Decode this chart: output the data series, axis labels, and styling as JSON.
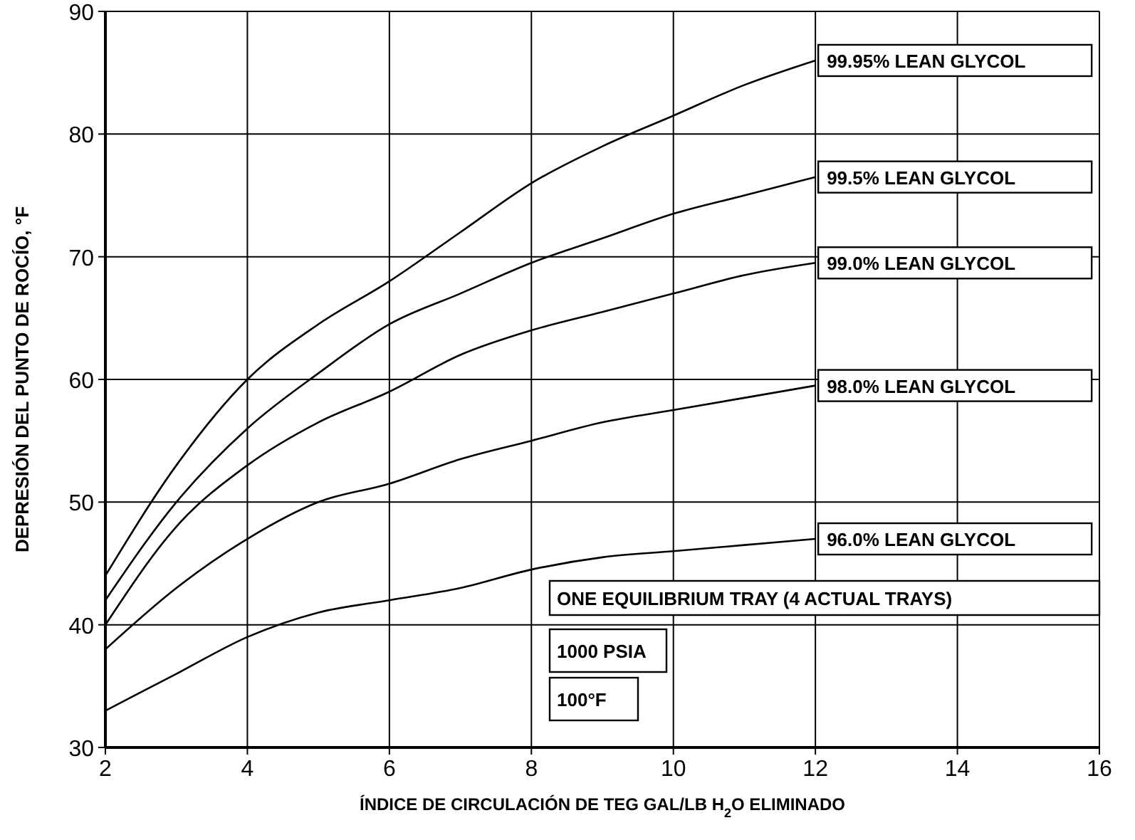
{
  "chart_data": {
    "type": "line",
    "xlabel": "ÍNDICE DE CIRCULACIÓN DE TEG GAL/LB H$_{2}$O ELIMINADO",
    "ylabel": "DEPRESIÓN DEL PUNTO DE ROCÍO, °F",
    "x": [
      2,
      3,
      4,
      5,
      6,
      7,
      8,
      9,
      10,
      11,
      12
    ],
    "series": [
      {
        "name": "99.95% LEAN GLYCOL",
        "color": "#000000",
        "values": [
          44,
          53,
          60,
          64.5,
          68,
          72,
          76,
          79,
          81.5,
          84,
          86
        ]
      },
      {
        "name": "99.5% LEAN GLYCOL",
        "color": "#000000",
        "values": [
          42,
          50,
          56,
          60.5,
          64.5,
          67,
          69.5,
          71.5,
          73.5,
          75,
          76.5
        ]
      },
      {
        "name": "99.0% LEAN GLYCOL",
        "color": "#000000",
        "values": [
          40,
          48,
          53,
          56.5,
          59,
          62,
          64,
          65.5,
          67,
          68.5,
          69.5
        ]
      },
      {
        "name": "98.0% LEAN GLYCOL",
        "color": "#000000",
        "values": [
          38,
          43,
          47,
          50,
          51.5,
          53.5,
          55,
          56.5,
          57.5,
          58.5,
          59.5
        ]
      },
      {
        "name": "96.0% LEAN GLYCOL",
        "color": "#000000",
        "values": [
          33,
          36,
          39,
          41,
          42,
          43,
          44.5,
          45.5,
          46,
          46.5,
          47
        ]
      }
    ],
    "xlim": [
      2,
      16
    ],
    "ylim": [
      30,
      90
    ],
    "xticks": [
      2,
      4,
      6,
      8,
      10,
      12,
      14,
      16
    ],
    "yticks": [
      30,
      40,
      50,
      60,
      70,
      80,
      90
    ],
    "grid": true,
    "annotations": [
      "ONE EQUILIBRIUM TRAY (4 ACTUAL TRAYS)",
      "1000 PSIA",
      "100°F"
    ]
  }
}
